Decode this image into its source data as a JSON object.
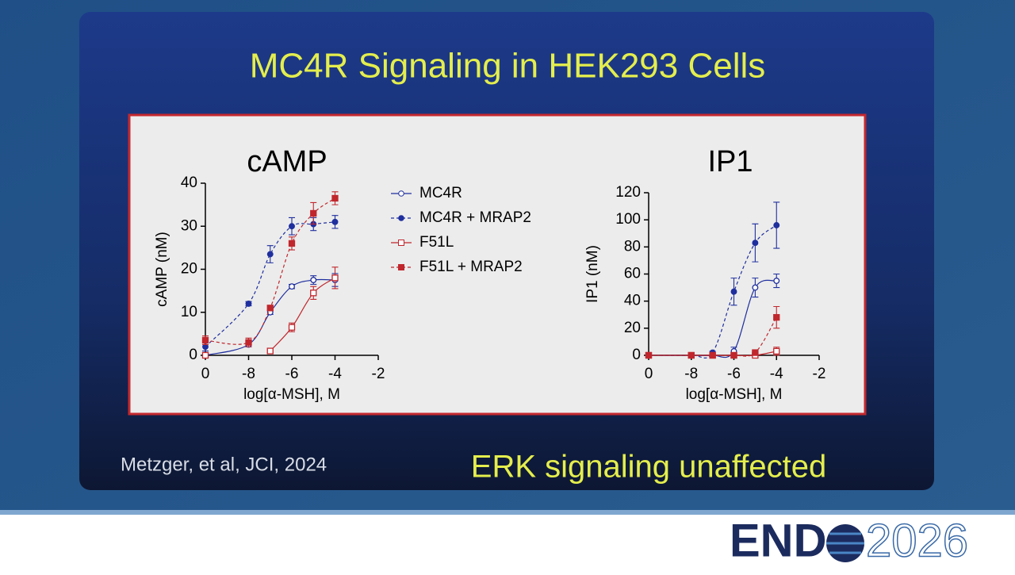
{
  "slide": {
    "title": "MC4R Signaling in HEK293 Cells",
    "citation": "Metzger, et al, JCI, 2024",
    "note": "ERK signaling unaffected",
    "logo_left": "END",
    "logo_right": "2026"
  },
  "chart_data": [
    {
      "type": "line",
      "title": "cAMP",
      "x_label": "log[α-MSH], M",
      "y_label": "cAMP (nM)",
      "x": [
        -10,
        -8,
        -7,
        -6,
        -5,
        -4
      ],
      "xlim": [
        -10,
        -2
      ],
      "xticks": [
        {
          "value": -10,
          "label": "0"
        },
        -8,
        -6,
        -4,
        -2
      ],
      "ylim": [
        0,
        40
      ],
      "yticks": [
        0,
        10,
        20,
        30,
        40
      ],
      "series": [
        {
          "name": "MC4R",
          "color": "#1f2f9e",
          "marker": "circle",
          "filled": false,
          "dash": false,
          "values": [
            0,
            2.5,
            10,
            16,
            17.5,
            17.5
          ],
          "errors": [
            0.5,
            0.5,
            0.5,
            0.5,
            1,
            1.5
          ]
        },
        {
          "name": "MC4R + MRAP2",
          "color": "#1f2f9e",
          "marker": "circle",
          "filled": true,
          "dash": true,
          "values": [
            2,
            12,
            23.5,
            30,
            30.5,
            31
          ],
          "errors": [
            1,
            0.5,
            2,
            2,
            1.5,
            1.5
          ]
        },
        {
          "name": "F51L",
          "color": "#c0272d",
          "marker": "square",
          "filled": false,
          "dash": false,
          "values": [
            0,
            null,
            1,
            6.5,
            14.5,
            18
          ],
          "errors": [
            0.5,
            null,
            0.5,
            1,
            1.5,
            2.5
          ]
        },
        {
          "name": "F51L + MRAP2",
          "color": "#c0272d",
          "marker": "square",
          "filled": true,
          "dash": true,
          "values": [
            3.5,
            3,
            11,
            26,
            33,
            36.5
          ],
          "errors": [
            1,
            1,
            0.5,
            1.5,
            2.5,
            1.5
          ]
        }
      ]
    },
    {
      "type": "line",
      "title": "IP1",
      "x_label": "log[α-MSH], M",
      "y_label": "IP1 (nM)",
      "x": [
        -10,
        -8,
        -7,
        -6,
        -5,
        -4
      ],
      "xlim": [
        -10,
        -2
      ],
      "xticks": [
        {
          "value": -10,
          "label": "0"
        },
        -8,
        -6,
        -4,
        -2
      ],
      "ylim": [
        0,
        120
      ],
      "yticks": [
        0,
        20,
        40,
        60,
        80,
        100,
        120
      ],
      "series": [
        {
          "color": "#1f2f9e",
          "marker": "circle",
          "filled": false,
          "dash": false,
          "values": [
            0,
            0,
            0,
            3,
            50,
            55
          ],
          "errors": [
            0,
            0,
            0,
            3,
            7,
            5
          ]
        },
        {
          "color": "#1f2f9e",
          "marker": "circle",
          "filled": true,
          "dash": true,
          "values": [
            0,
            0,
            2,
            47,
            83,
            96
          ],
          "errors": [
            0,
            0,
            1,
            10,
            14,
            17
          ]
        },
        {
          "color": "#c0272d",
          "marker": "square",
          "filled": false,
          "dash": false,
          "values": [
            0,
            0,
            0,
            0,
            0,
            3
          ],
          "errors": [
            0,
            0,
            0,
            0,
            0,
            3
          ]
        },
        {
          "color": "#c0272d",
          "marker": "square",
          "filled": true,
          "dash": true,
          "values": [
            0,
            0,
            0,
            0,
            2,
            28
          ],
          "errors": [
            0,
            0,
            0,
            0,
            1,
            8
          ]
        }
      ]
    }
  ]
}
